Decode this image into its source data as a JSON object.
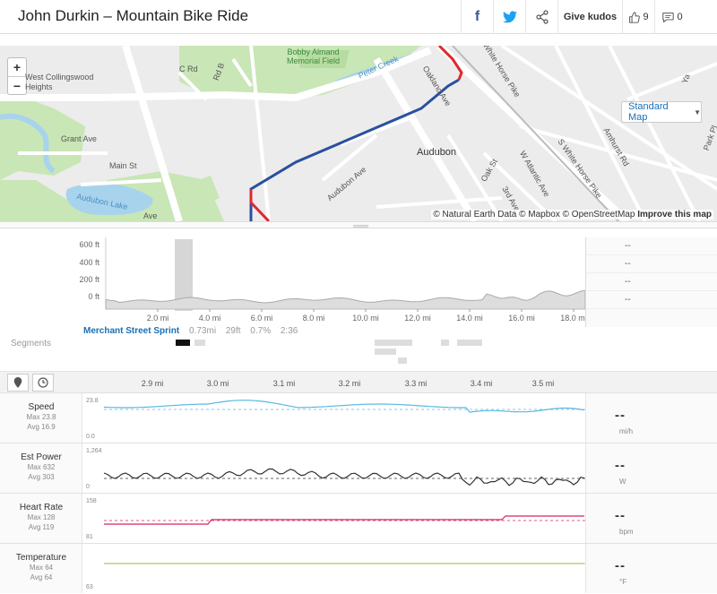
{
  "header": {
    "title": "John Durkin – Mountain Bike Ride",
    "facebook_label": "f",
    "give_kudos_label": "Give kudos",
    "kudos_count": "9",
    "comment_count": "0"
  },
  "map": {
    "zoom_in": "+",
    "zoom_out": "−",
    "style_label": "Standard Map",
    "attribution": "© Natural Earth Data © Mapbox © OpenStreetMap",
    "improve_label": "Improve this map",
    "labels": {
      "collingswood": "West Collingswood\nHeights",
      "bobby": "Bobby Almand\nMemorial Field",
      "peter_creek": "Peter Creek",
      "c_rd": "C Rd",
      "b_rd": "Rd B",
      "oakland": "Oakland Ave",
      "white_horse": "White Horse Pike",
      "s_white_horse": "S White Horse Pike",
      "grant": "Grant Ave",
      "main": "Main St",
      "audubon": "Audubon",
      "audubon_ave": "Audubon Ave",
      "oak": "Oak St",
      "audubon_lake": "Audubon Lake",
      "atlantic": "W Atlantic Ave",
      "third": "3rd Ave",
      "amhurst": "Amhurst Rd",
      "park": "Park Pl",
      "ave": "Ave",
      "ya": "Ya"
    },
    "colors": {
      "route_main": "#2a4fa0",
      "route_segment": "#e0282e"
    }
  },
  "elevation": {
    "y_labels": [
      "600 ft",
      "400 ft",
      "200 ft",
      "0 ft"
    ],
    "x_labels": [
      "2.0 mi",
      "4.0 mi",
      "6.0 mi",
      "8.0 mi",
      "10.0 mi",
      "12.0 mi",
      "14.0 mi",
      "16.0 mi",
      "18.0 mi"
    ],
    "side_values": [
      "--",
      "--",
      "--",
      "--"
    ]
  },
  "segments": {
    "label": "Segments",
    "selected": {
      "name": "Merchant Street Sprint",
      "distance": "0.73mi",
      "elevation": "29ft",
      "grade": "0.7%",
      "time": "2:36"
    }
  },
  "zoomed_axis": [
    "2.9 mi",
    "3.0 mi",
    "3.1 mi",
    "3.2 mi",
    "3.3 mi",
    "3.4 mi",
    "3.5 mi"
  ],
  "streams": [
    {
      "name": "Speed",
      "max": "Max 23.8",
      "avg": "Avg 16.9",
      "top": "23.8",
      "bottom": "0.0",
      "value": "--",
      "unit": "mi/h",
      "color": "#5bb8e0"
    },
    {
      "name": "Est Power",
      "max": "Max 632",
      "avg": "Avg 303",
      "top": "1,264",
      "bottom": "0",
      "value": "--",
      "unit": "W",
      "color": "#333333"
    },
    {
      "name": "Heart Rate",
      "max": "Max 128",
      "avg": "Avg 119",
      "top": "158",
      "bottom": "81",
      "value": "--",
      "unit": "bpm",
      "color": "#d6245e"
    },
    {
      "name": "Temperature",
      "max": "Max 64",
      "avg": "Avg 64",
      "top": "",
      "bottom": "63",
      "value": "--",
      "unit": "°F",
      "color": "#b8c06a"
    }
  ]
}
